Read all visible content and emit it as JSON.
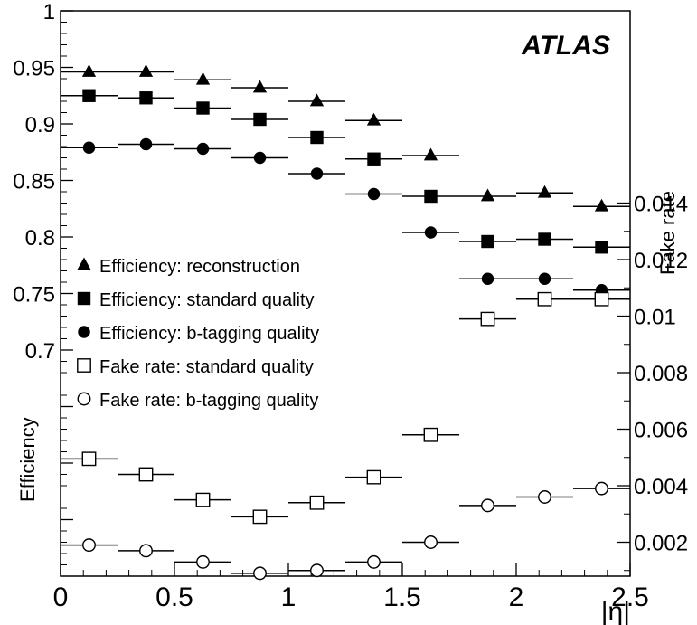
{
  "chart_data": {
    "type": "scatter",
    "title": "",
    "watermark": "ATLAS",
    "xlabel": "|η|",
    "ylabel_left": "Efficiency",
    "ylabel_right": "Fake rate",
    "xlim": [
      0,
      2.5
    ],
    "ylim_left": [
      0.5,
      1.0
    ],
    "ylim_right": [
      0.0008,
      0.0208
    ],
    "x_ticks": [
      "0",
      "0.5",
      "1",
      "1.5",
      "2",
      "2.5"
    ],
    "y_left_ticks": [
      "0.7",
      "0.75",
      "0.8",
      "0.85",
      "0.9",
      "0.95",
      "1"
    ],
    "y_right_ticks": [
      "0.002",
      "0.004",
      "0.006",
      "0.008",
      "0.01",
      "0.012",
      "0.014"
    ],
    "grid": false,
    "legend_position": "middle-left",
    "x_bin_edges": [
      0,
      0.25,
      0.5,
      0.75,
      1.0,
      1.25,
      1.5,
      1.75,
      2.0,
      2.25,
      2.5
    ],
    "series": [
      {
        "name": "Efficiency: reconstruction",
        "marker": "filled-triangle",
        "axis": "left",
        "values": [
          0.946,
          0.946,
          0.939,
          0.932,
          0.92,
          0.903,
          0.872,
          0.836,
          0.839,
          0.827
        ]
      },
      {
        "name": "Efficiency: standard quality",
        "marker": "filled-square",
        "axis": "left",
        "values": [
          0.925,
          0.923,
          0.914,
          0.904,
          0.888,
          0.869,
          0.836,
          0.796,
          0.798,
          0.791
        ]
      },
      {
        "name": "Efficiency: b-tagging quality",
        "marker": "filled-circle",
        "axis": "left",
        "values": [
          0.879,
          0.882,
          0.878,
          0.87,
          0.856,
          0.838,
          0.804,
          0.763,
          0.763,
          0.753
        ]
      },
      {
        "name": "Fake rate: standard quality",
        "marker": "open-square",
        "axis": "right",
        "values": [
          0.00495,
          0.0044,
          0.0035,
          0.0029,
          0.0034,
          0.0043,
          0.0058,
          0.0099,
          0.0106,
          0.0106
        ]
      },
      {
        "name": "Fake rate: b-tagging quality",
        "marker": "open-circle",
        "axis": "right",
        "values": [
          0.0019,
          0.0017,
          0.0013,
          0.0009,
          0.001,
          0.0013,
          0.002,
          0.0033,
          0.0036,
          0.0039
        ]
      }
    ]
  }
}
